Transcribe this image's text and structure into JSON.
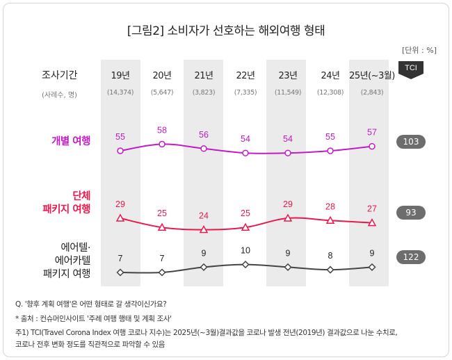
{
  "title": "[그림2] 소비자가 선호하는 해외여행 형태",
  "unit": "[단위 : %]",
  "header": {
    "label": "조사기간",
    "sub": "(사례수, 명)",
    "tci_label": "TCI"
  },
  "chart_data": {
    "type": "line",
    "categories": [
      "19년",
      "20년",
      "21년",
      "22년",
      "23년",
      "24년",
      "25년(~3월)"
    ],
    "sample_sizes": [
      "(14,374)",
      "(5,647)",
      "(3,823)",
      "(7,335)",
      "(11,549)",
      "(12,308)",
      "(2,843)"
    ],
    "series": [
      {
        "name": "개별 여행",
        "name_lines": [
          "개별 여행"
        ],
        "values": [
          55,
          58,
          56,
          54,
          54,
          55,
          57
        ],
        "tci": "103",
        "color": "#c21bc4",
        "marker": "circle",
        "value_labels": [
          "55",
          "58",
          "56",
          "54",
          "54",
          "55",
          "57"
        ]
      },
      {
        "name": "단체 패키지 여행",
        "name_lines": [
          "단체",
          "패키지 여행"
        ],
        "values": [
          29,
          25,
          24,
          25,
          29,
          28,
          27
        ],
        "tci": "93",
        "color": "#e8194d",
        "marker": "triangle",
        "value_labels": [
          "29",
          "25",
          "24",
          "25",
          "29",
          "28",
          "27"
        ]
      },
      {
        "name": "에어텔·에어카텔 패키지 여행",
        "name_lines": [
          "에어텔·",
          "에어카텔",
          "패키지 여행"
        ],
        "values": [
          7,
          7,
          9,
          10,
          9,
          8,
          9
        ],
        "tci": "122",
        "color": "#444444",
        "marker": "diamond",
        "value_labels": [
          "7",
          "7",
          "9",
          "10",
          "9",
          "8",
          "9"
        ]
      }
    ]
  },
  "notes": [
    "Q. '향후 계획 여행'은 어떤 형태로 갈 생각이신가요?",
    "* 출처 : 컨슈머인사이트 '주례 여행 행태 및 계획 조사'",
    "주1) TCI(Travel Corona Index 여행 코로나 지수)는 2025년(~3월)결과값을 코로나 발생 전년(2019년) 결과값으로 나눈 수치로,",
    "코로나 전후 변화 정도를 직관적으로 파악할 수 있음"
  ]
}
